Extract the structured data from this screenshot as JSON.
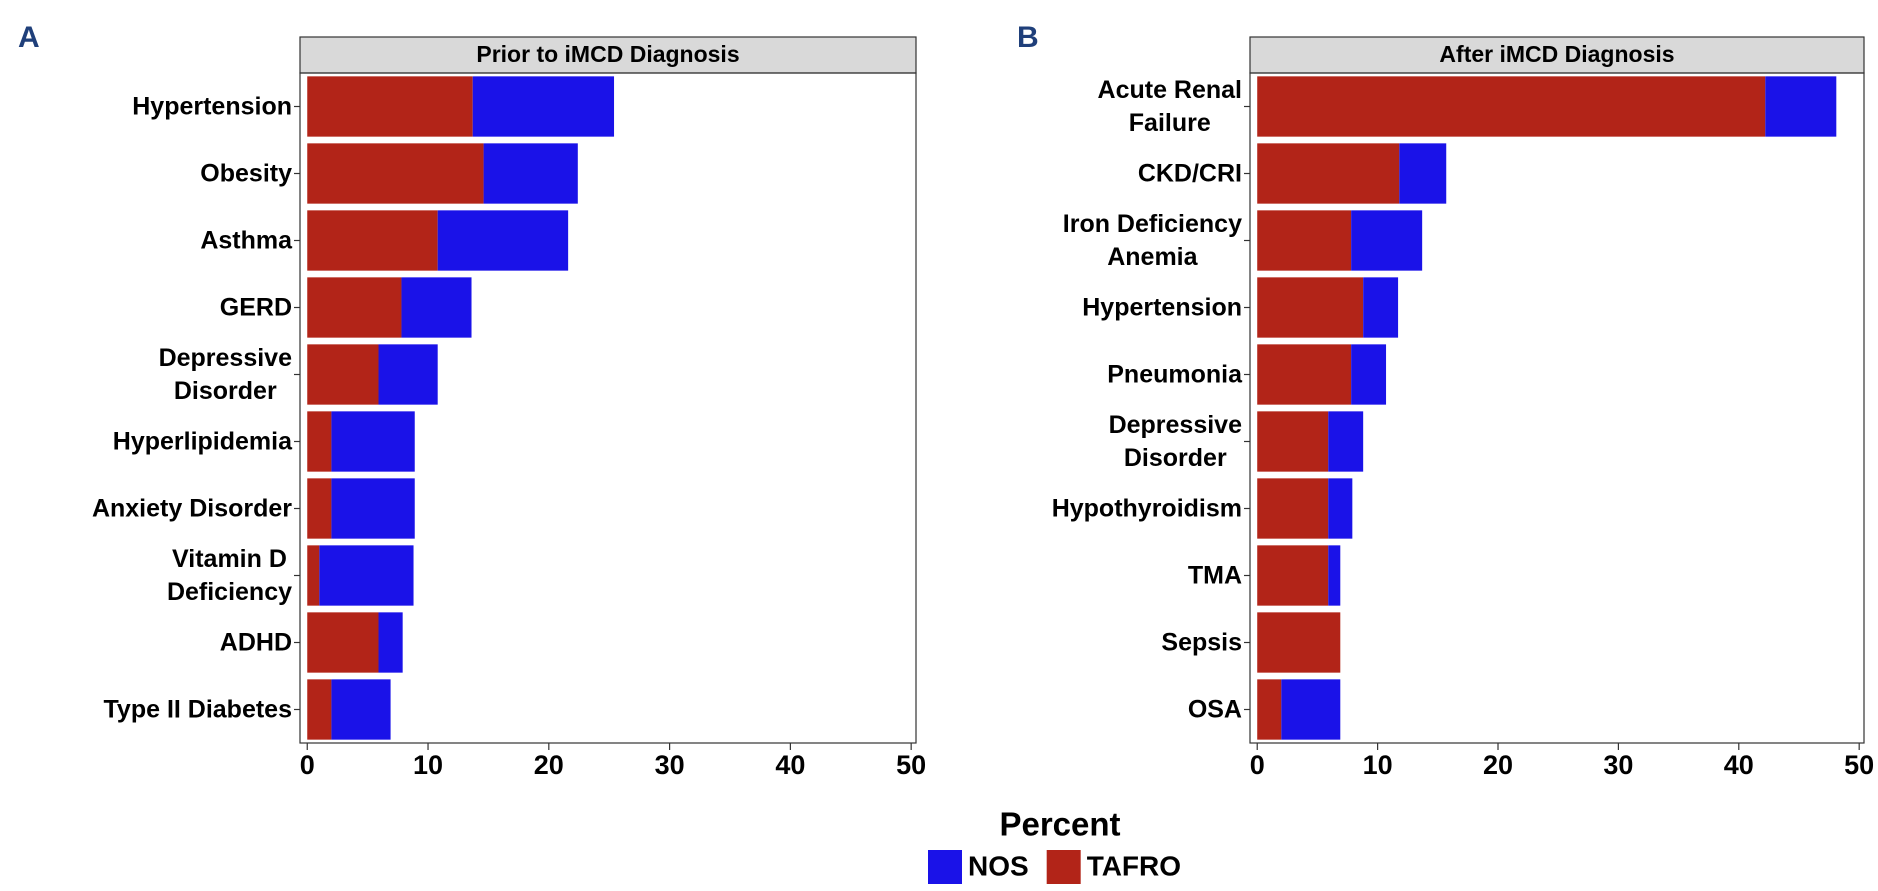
{
  "chart_data": [
    {
      "type": "bar",
      "orientation": "horizontal",
      "stacked": true,
      "label": "A",
      "title": "Prior to iMCD Diagnosis",
      "categories": [
        "Hypertension",
        "Obesity",
        "Asthma",
        "GERD",
        "Depressive\nDisorder",
        "Hyperlipidemia",
        "Anxiety Disorder",
        "Vitamin D\nDeficiency",
        "ADHD",
        "Type II Diabetes"
      ],
      "series": [
        {
          "name": "NOS",
          "color": "#1a12e8",
          "values": [
            11.7,
            7.8,
            10.8,
            5.8,
            4.9,
            6.9,
            6.9,
            7.8,
            2.0,
            4.9
          ]
        },
        {
          "name": "TAFRO",
          "color": "#b22418",
          "values": [
            13.7,
            14.6,
            10.8,
            7.8,
            5.9,
            2.0,
            2.0,
            1.0,
            5.9,
            2.0
          ]
        }
      ],
      "xlim": [
        -0.6,
        50.4
      ],
      "xticks": [
        0,
        10,
        20,
        30,
        40,
        50
      ]
    },
    {
      "type": "bar",
      "orientation": "horizontal",
      "stacked": true,
      "label": "B",
      "title": "After iMCD Diagnosis",
      "categories": [
        "Acute Renal\nFailure",
        "CKD/CRI",
        "Iron Deficiency\nAnemia",
        "Hypertension",
        "Pneumonia",
        "Depressive\nDisorder",
        "Hypothyroidism",
        "TMA",
        "Sepsis",
        "OSA"
      ],
      "series": [
        {
          "name": "NOS",
          "color": "#1a12e8",
          "values": [
            5.9,
            3.9,
            5.9,
            2.9,
            2.9,
            2.9,
            2.0,
            1.0,
            0,
            4.9
          ]
        },
        {
          "name": "TAFRO",
          "color": "#b22418",
          "values": [
            42.2,
            11.8,
            7.8,
            8.8,
            7.8,
            5.9,
            5.9,
            5.9,
            6.9,
            2.0
          ]
        }
      ],
      "xlim": [
        -0.6,
        50.4
      ],
      "xticks": [
        0,
        10,
        20,
        30,
        40,
        50
      ]
    }
  ],
  "legend_title": "Percent"
}
